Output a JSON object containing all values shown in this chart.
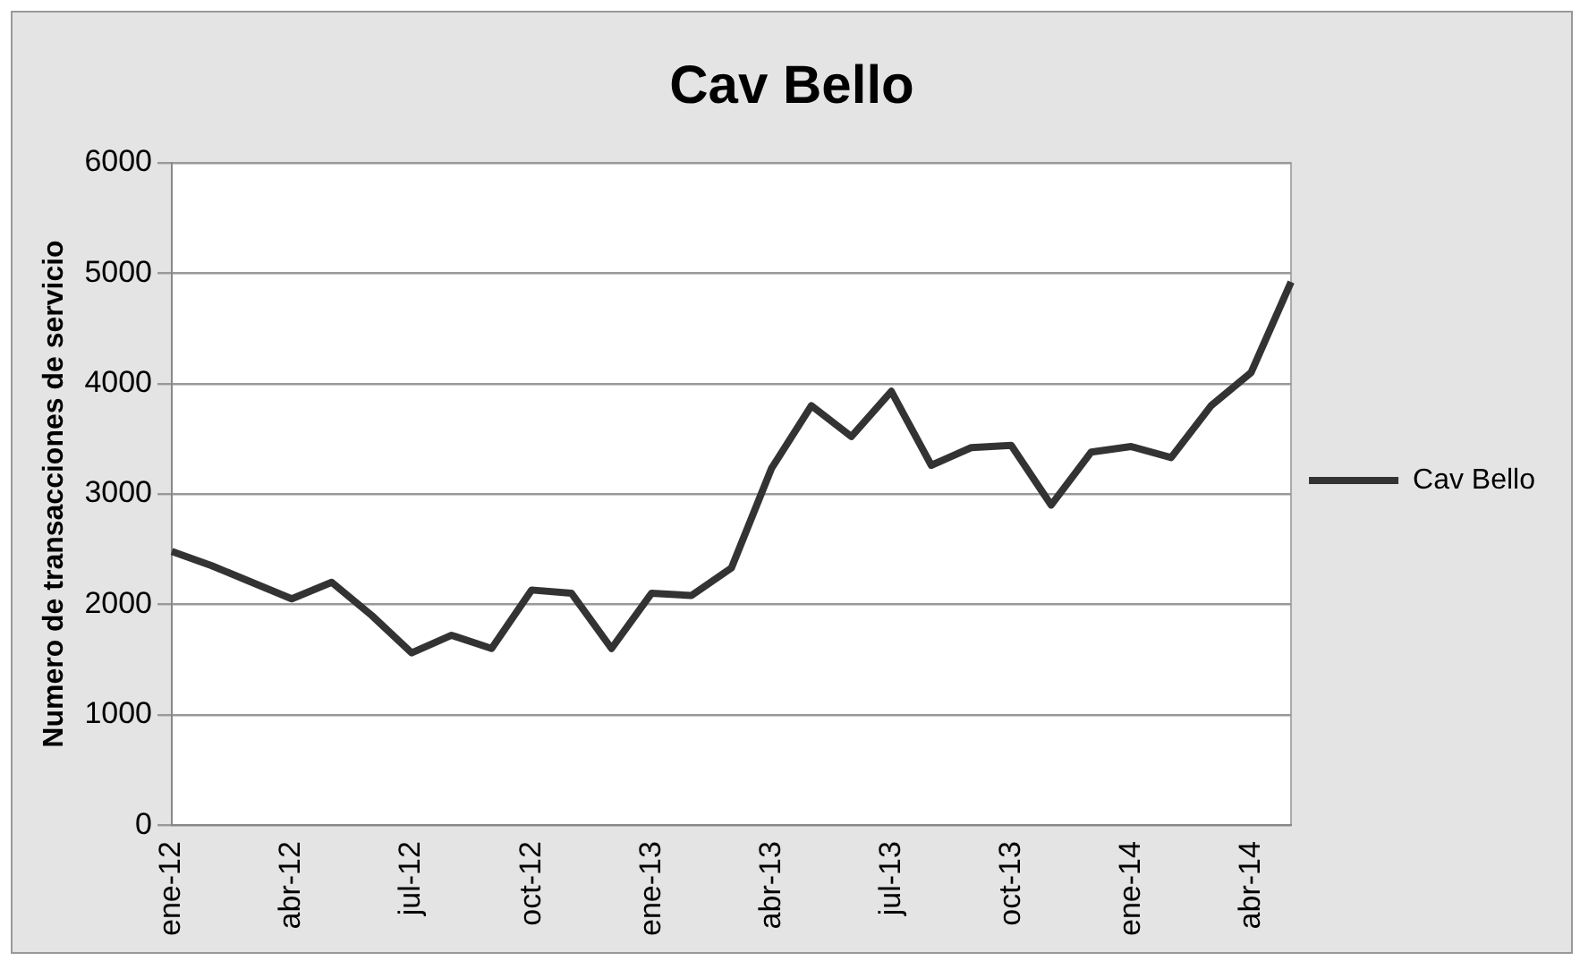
{
  "chart_data": {
    "type": "line",
    "title": "Cav Bello",
    "ylabel": "Numero de transacciones de servicio",
    "categories": [
      "ene-12",
      null,
      null,
      "abr-12",
      null,
      null,
      "jul-12",
      null,
      null,
      "oct-12",
      null,
      null,
      "ene-13",
      null,
      null,
      "abr-13",
      null,
      null,
      "jul-13",
      null,
      null,
      "oct-13",
      null,
      null,
      "ene-14",
      null,
      null,
      "abr-14",
      null
    ],
    "series": [
      {
        "name": "Cav Bello",
        "color": "#333333",
        "values": [
          2480,
          2350,
          2200,
          2050,
          2200,
          1900,
          1560,
          1720,
          1600,
          2130,
          2100,
          1600,
          2100,
          2080,
          2330,
          3230,
          3800,
          3520,
          3930,
          3260,
          3420,
          3440,
          2900,
          3380,
          3430,
          3330,
          3800,
          4100,
          4920
        ]
      }
    ],
    "ylim": [
      0,
      6000
    ],
    "yticks": [
      0,
      1000,
      2000,
      3000,
      4000,
      5000,
      6000
    ],
    "grid": "y",
    "legend": "right",
    "marker": "none",
    "line_style": "solid"
  }
}
